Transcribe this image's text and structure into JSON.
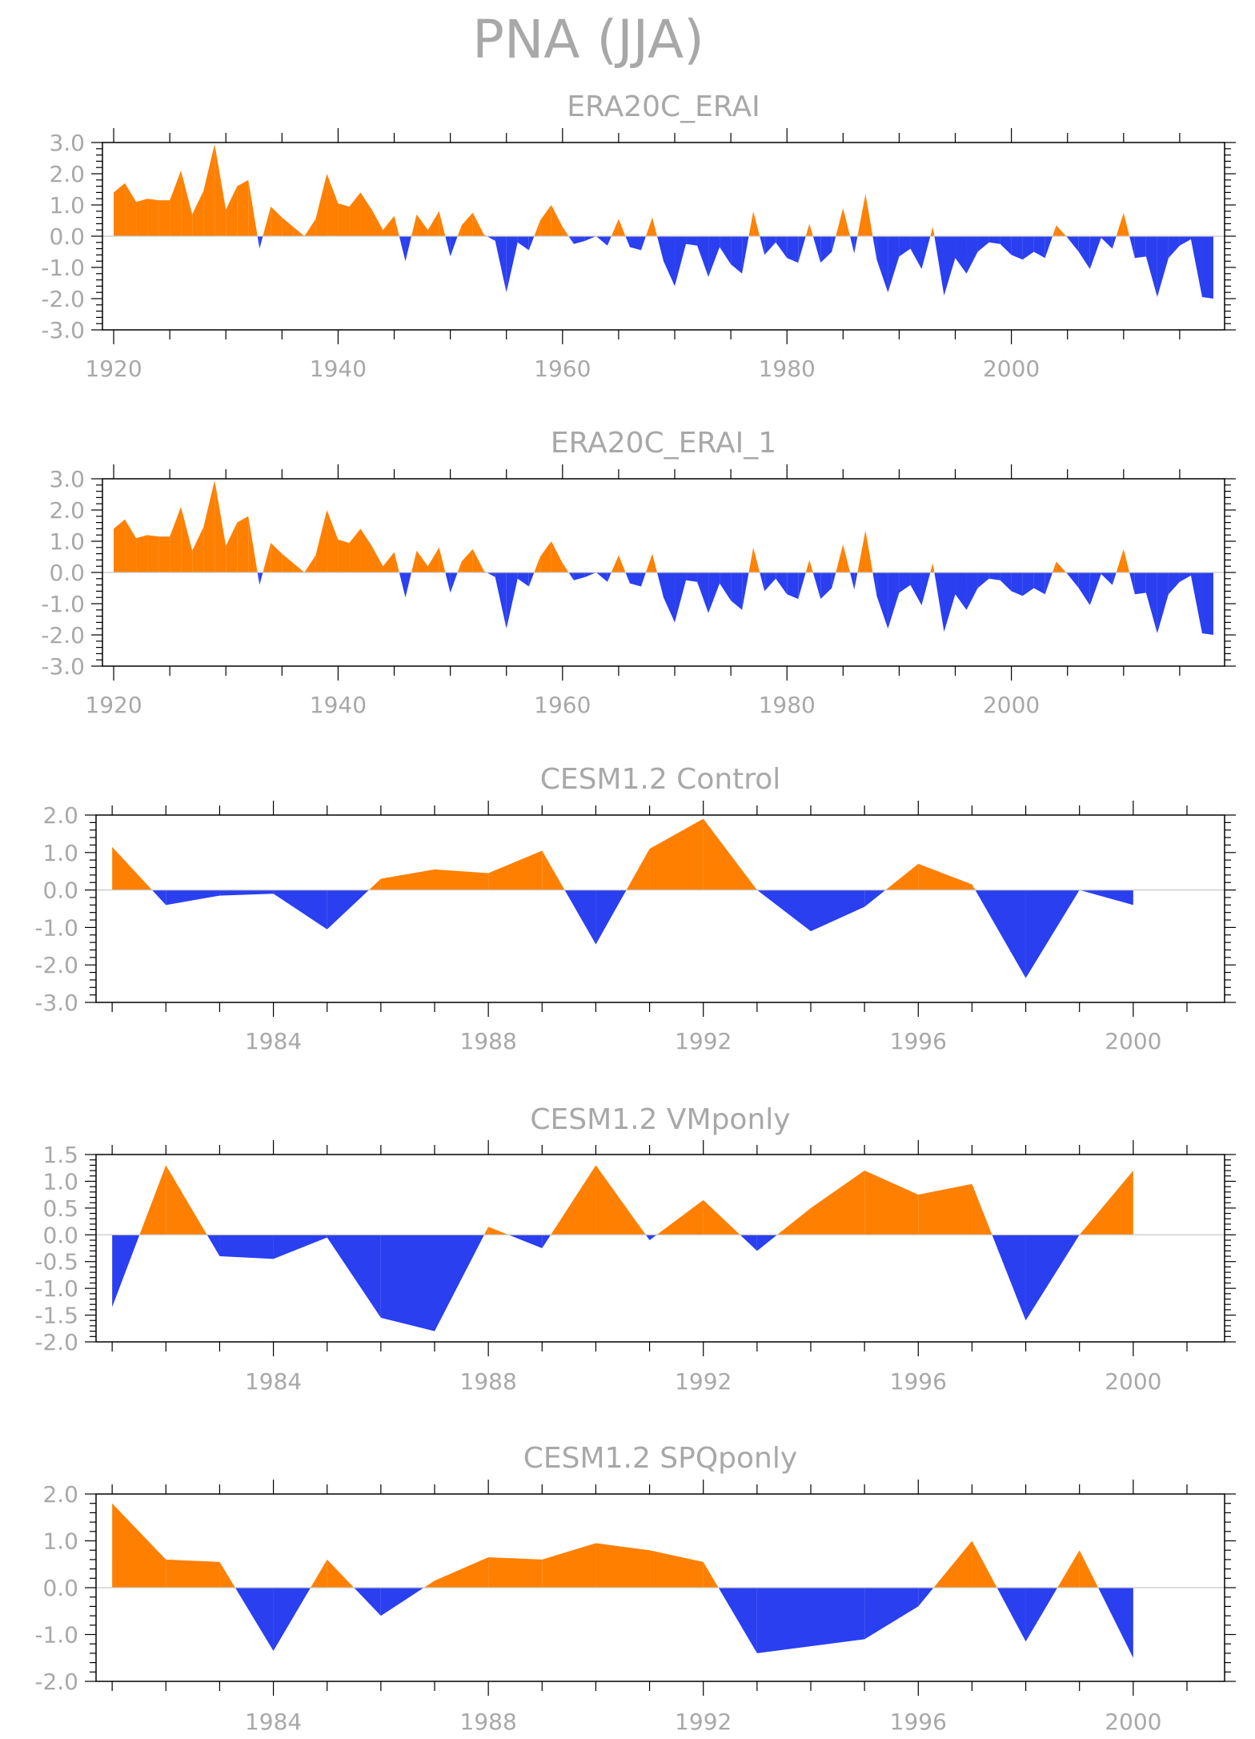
{
  "main_title": "PNA (JJA)",
  "colors": {
    "positive": "#ff8000",
    "negative": "#2a3ff0",
    "axis": "#000000",
    "text": "#a8a8a8"
  },
  "chart_data": [
    {
      "type": "area",
      "title": "ERA20C_ERAI",
      "xlabel": "",
      "ylabel": "",
      "xlim": [
        1919,
        2019
      ],
      "ylim": [
        -3,
        3
      ],
      "yticks": [
        -3,
        -2,
        -1,
        0,
        1,
        2,
        3
      ],
      "ytick_labels": [
        "-3.0",
        "-2.0",
        "-1.0",
        "0.0",
        "1.0",
        "2.0",
        "3.0"
      ],
      "xticks": [
        1920,
        1940,
        1960,
        1980,
        2000
      ],
      "xtick_labels": [
        "1920",
        "1940",
        "1960",
        "1980",
        "2000"
      ],
      "grid": false,
      "x_start": 1920,
      "values": [
        1.4,
        1.7,
        1.1,
        1.2,
        1.15,
        1.15,
        2.1,
        0.7,
        1.45,
        2.95,
        0.85,
        1.6,
        1.8,
        -0.4,
        0.95,
        0.6,
        0.3,
        0.0,
        0.55,
        2.0,
        1.05,
        0.95,
        1.4,
        0.85,
        0.2,
        0.65,
        -0.8,
        0.7,
        0.2,
        0.8,
        -0.65,
        0.35,
        0.75,
        0.05,
        -0.15,
        -1.8,
        -0.2,
        -0.45,
        0.5,
        1.0,
        0.3,
        -0.25,
        -0.15,
        0.0,
        -0.3,
        0.55,
        -0.35,
        -0.45,
        0.6,
        -0.8,
        -1.6,
        -0.25,
        -0.3,
        -1.3,
        -0.35,
        -0.9,
        -1.2,
        0.8,
        -0.6,
        -0.2,
        -0.7,
        -0.85,
        0.4,
        -0.85,
        -0.5,
        0.9,
        -0.55,
        1.35,
        -0.75,
        -1.8,
        -0.65,
        -0.4,
        -1.05,
        0.3,
        -1.9,
        -0.7,
        -1.2,
        -0.5,
        -0.2,
        -0.25,
        -0.6,
        -0.75,
        -0.5,
        -0.7,
        0.35,
        -0.05,
        -0.5,
        -1.05,
        -0.05,
        -0.4,
        0.75,
        -0.7,
        -0.65,
        -1.95,
        -0.7,
        -0.3,
        -0.1,
        -1.95,
        -2.0
      ]
    },
    {
      "type": "area",
      "title": "ERA20C_ERAI_1",
      "xlabel": "",
      "ylabel": "",
      "xlim": [
        1919,
        2019
      ],
      "ylim": [
        -3,
        3
      ],
      "yticks": [
        -3,
        -2,
        -1,
        0,
        1,
        2,
        3
      ],
      "ytick_labels": [
        "-3.0",
        "-2.0",
        "-1.0",
        "0.0",
        "1.0",
        "2.0",
        "3.0"
      ],
      "xticks": [
        1920,
        1940,
        1960,
        1980,
        2000
      ],
      "xtick_labels": [
        "1920",
        "1940",
        "1960",
        "1980",
        "2000"
      ],
      "grid": false,
      "x_start": 1920,
      "values": [
        1.4,
        1.7,
        1.1,
        1.2,
        1.15,
        1.15,
        2.1,
        0.7,
        1.45,
        2.95,
        0.85,
        1.6,
        1.8,
        -0.4,
        0.95,
        0.6,
        0.3,
        0.0,
        0.55,
        2.0,
        1.05,
        0.95,
        1.4,
        0.85,
        0.2,
        0.65,
        -0.8,
        0.7,
        0.2,
        0.8,
        -0.65,
        0.35,
        0.75,
        0.05,
        -0.15,
        -1.8,
        -0.2,
        -0.45,
        0.5,
        1.0,
        0.3,
        -0.25,
        -0.15,
        0.0,
        -0.3,
        0.55,
        -0.35,
        -0.45,
        0.6,
        -0.8,
        -1.6,
        -0.25,
        -0.3,
        -1.3,
        -0.35,
        -0.9,
        -1.2,
        0.8,
        -0.6,
        -0.2,
        -0.7,
        -0.85,
        0.4,
        -0.85,
        -0.5,
        0.9,
        -0.55,
        1.35,
        -0.75,
        -1.8,
        -0.65,
        -0.4,
        -1.05,
        0.3,
        -1.9,
        -0.7,
        -1.2,
        -0.5,
        -0.2,
        -0.25,
        -0.6,
        -0.75,
        -0.5,
        -0.7,
        0.35,
        -0.05,
        -0.5,
        -1.05,
        -0.05,
        -0.4,
        0.75,
        -0.7,
        -0.65,
        -1.95,
        -0.7,
        -0.3,
        -0.1,
        -1.95,
        -2.0
      ]
    },
    {
      "type": "area",
      "title": "CESM1.2 Control",
      "xlabel": "",
      "ylabel": "",
      "xlim": [
        1980.7,
        2001.7
      ],
      "ylim": [
        -3,
        2
      ],
      "yticks": [
        -3,
        -2,
        -1,
        0,
        1,
        2
      ],
      "ytick_labels": [
        "-3.0",
        "-2.0",
        "-1.0",
        "0.0",
        "1.0",
        "2.0"
      ],
      "xticks": [
        1984,
        1988,
        1992,
        1996,
        2000
      ],
      "xtick_labels": [
        "1984",
        "1988",
        "1992",
        "1996",
        "2000"
      ],
      "grid": false,
      "x_start": 1981,
      "values": [
        1.15,
        -0.4,
        -0.15,
        -0.1,
        -1.05,
        0.3,
        0.55,
        0.45,
        1.05,
        -1.45,
        1.1,
        1.9,
        0.0,
        -1.1,
        -0.45,
        0.7,
        0.15,
        -2.35,
        0.0,
        -0.4
      ]
    },
    {
      "type": "area",
      "title": "CESM1.2 VMponly",
      "xlabel": "",
      "ylabel": "",
      "xlim": [
        1980.7,
        2001.7
      ],
      "ylim": [
        -2,
        1.5
      ],
      "yticks": [
        -2,
        -1.5,
        -1,
        -0.5,
        0,
        0.5,
        1,
        1.5
      ],
      "ytick_labels": [
        "-2.0",
        "-1.5",
        "-1.0",
        "-0.5",
        "0.0",
        "0.5",
        "1.0",
        "1.5"
      ],
      "xticks": [
        1984,
        1988,
        1992,
        1996,
        2000
      ],
      "xtick_labels": [
        "1984",
        "1988",
        "1992",
        "1996",
        "2000"
      ],
      "grid": false,
      "x_start": 1981,
      "values": [
        -1.35,
        1.3,
        -0.4,
        -0.45,
        -0.05,
        -1.55,
        -1.8,
        0.15,
        -0.25,
        1.3,
        -0.1,
        0.65,
        -0.3,
        0.5,
        1.2,
        0.75,
        0.95,
        -1.6,
        0.0,
        1.2
      ]
    },
    {
      "type": "area",
      "title": "CESM1.2 SPQponly",
      "xlabel": "",
      "ylabel": "",
      "xlim": [
        1980.7,
        2001.7
      ],
      "ylim": [
        -2,
        2
      ],
      "yticks": [
        -2,
        -1,
        0,
        1,
        2
      ],
      "ytick_labels": [
        "-2.0",
        "-1.0",
        "0.0",
        "1.0",
        "2.0"
      ],
      "xticks": [
        1984,
        1988,
        1992,
        1996,
        2000
      ],
      "xtick_labels": [
        "1984",
        "1988",
        "1992",
        "1996",
        "2000"
      ],
      "grid": false,
      "x_start": 1981,
      "values": [
        1.8,
        0.6,
        0.55,
        -1.35,
        0.6,
        -0.6,
        0.15,
        0.65,
        0.6,
        0.95,
        0.8,
        0.55,
        -1.4,
        -1.25,
        -1.1,
        -0.4,
        1.0,
        -1.15,
        0.8,
        -1.5
      ]
    }
  ]
}
